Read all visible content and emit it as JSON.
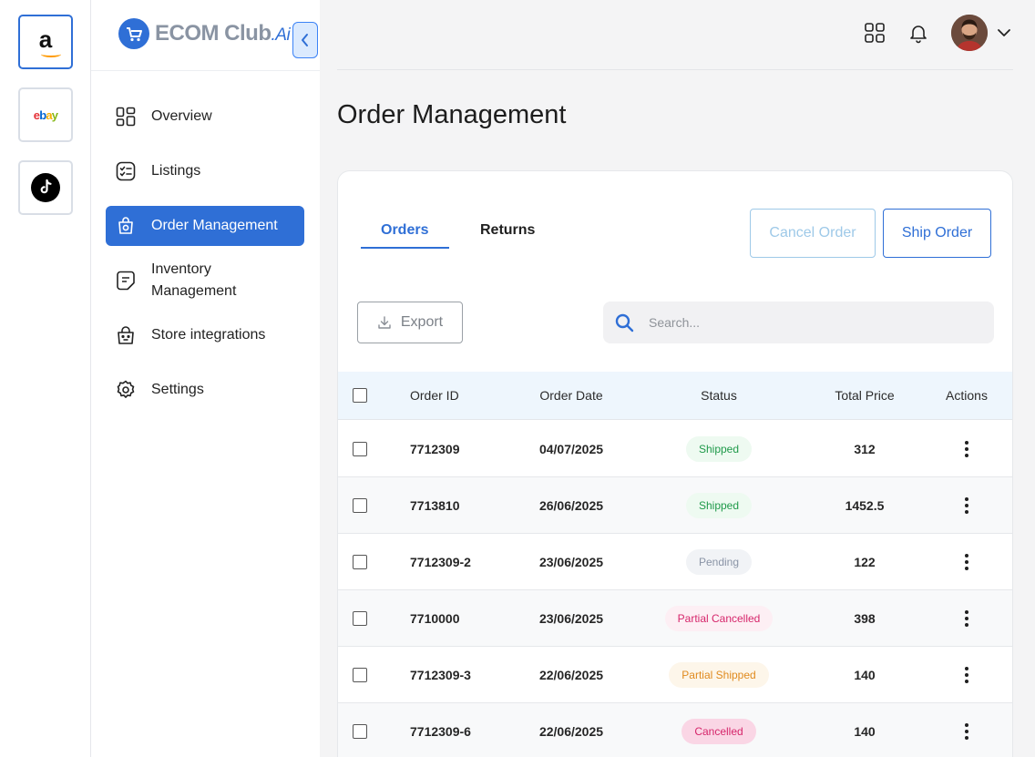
{
  "stores": [
    {
      "name": "amazon",
      "active": true,
      "icon": "amazon-icon"
    },
    {
      "name": "ebay",
      "active": false,
      "icon": "ebay-icon",
      "logo_text": "ebay"
    },
    {
      "name": "tiktok",
      "active": false,
      "icon": "tiktok-icon"
    }
  ],
  "brand": {
    "name": "ECOM Club",
    "suffix": ".Ai"
  },
  "nav": [
    {
      "label": "Overview",
      "icon": "grid-icon"
    },
    {
      "label": "Listings",
      "icon": "checklist-icon"
    },
    {
      "label": "Order Management",
      "icon": "order-icon",
      "active": true
    },
    {
      "label": "Inventory Management",
      "icon": "inventory-icon"
    },
    {
      "label": "Store integrations",
      "icon": "store-icon"
    },
    {
      "label": "Settings",
      "icon": "gear-icon"
    }
  ],
  "page_title": "Order Management",
  "tabs": [
    {
      "label": "Orders",
      "active": true
    },
    {
      "label": "Returns",
      "active": false
    }
  ],
  "actions": {
    "cancel_order": "Cancel Order",
    "ship_order": "Ship Order",
    "export": "Export"
  },
  "search": {
    "placeholder": "Search..."
  },
  "table": {
    "headers": [
      "Order ID",
      "Order Date",
      "Status",
      "Total Price",
      "Actions"
    ],
    "rows": [
      {
        "id": "7712309",
        "date": "04/07/2025",
        "status": "Shipped",
        "price": "312"
      },
      {
        "id": "7713810",
        "date": "26/06/2025",
        "status": "Shipped",
        "price": "1452.5"
      },
      {
        "id": "7712309-2",
        "date": "23/06/2025",
        "status": "Pending",
        "price": "122"
      },
      {
        "id": "7710000",
        "date": "23/06/2025",
        "status": "Partial Cancelled",
        "price": "398"
      },
      {
        "id": "7712309-3",
        "date": "22/06/2025",
        "status": "Partial Shipped",
        "price": "140"
      },
      {
        "id": "7712309-6",
        "date": "22/06/2025",
        "status": "Cancelled",
        "price": "140"
      }
    ]
  },
  "colors": {
    "accent": "#2f6fd6",
    "status": {
      "Shipped": {
        "bg": "#eefaf1",
        "fg": "#1f9a4a"
      },
      "Pending": {
        "bg": "#f1f3f6",
        "fg": "#8a94a6"
      },
      "Partial Cancelled": {
        "bg": "#fdeff4",
        "fg": "#d6266b"
      },
      "Partial Shipped": {
        "bg": "#fdf6ea",
        "fg": "#e08a1e"
      },
      "Cancelled": {
        "bg": "#fad6e5",
        "fg": "#d6266b"
      }
    }
  }
}
